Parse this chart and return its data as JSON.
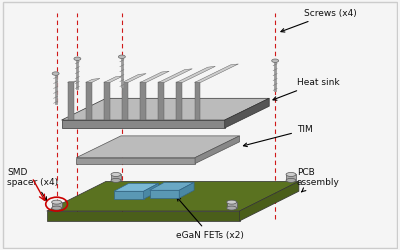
{
  "bg_color": "#f5f5f5",
  "labels": {
    "screws": "Screws (x4)",
    "heat_sink": "Heat sink",
    "tim": "TIM",
    "smd": "SMD\nspacer (x4)",
    "pcb": "PCB\nassembly",
    "egan": "eGaN FETs (x2)"
  },
  "colors": {
    "border_color": "#cccccc",
    "pcb_green": "#4a5e1a",
    "pcb_green_top": "#5a7220",
    "heatsink_gray": "#888888",
    "heatsink_light": "#cccccc",
    "heatsink_dark": "#555555",
    "heatsink_base_top": "#bbbbbb",
    "tim_top": "#aaaaaa",
    "tim_side": "#888888",
    "screw_color": "#999999",
    "spacer_color": "#aaaaaa",
    "egan_color": "#7ab8d4",
    "egan_color2": "#6aa8c4",
    "red_dashed": "#cc0000",
    "arrow_color": "#000000",
    "circle_color": "#cc0000",
    "label_color": "#111111"
  },
  "figsize": [
    4.0,
    2.5
  ],
  "dpi": 100
}
